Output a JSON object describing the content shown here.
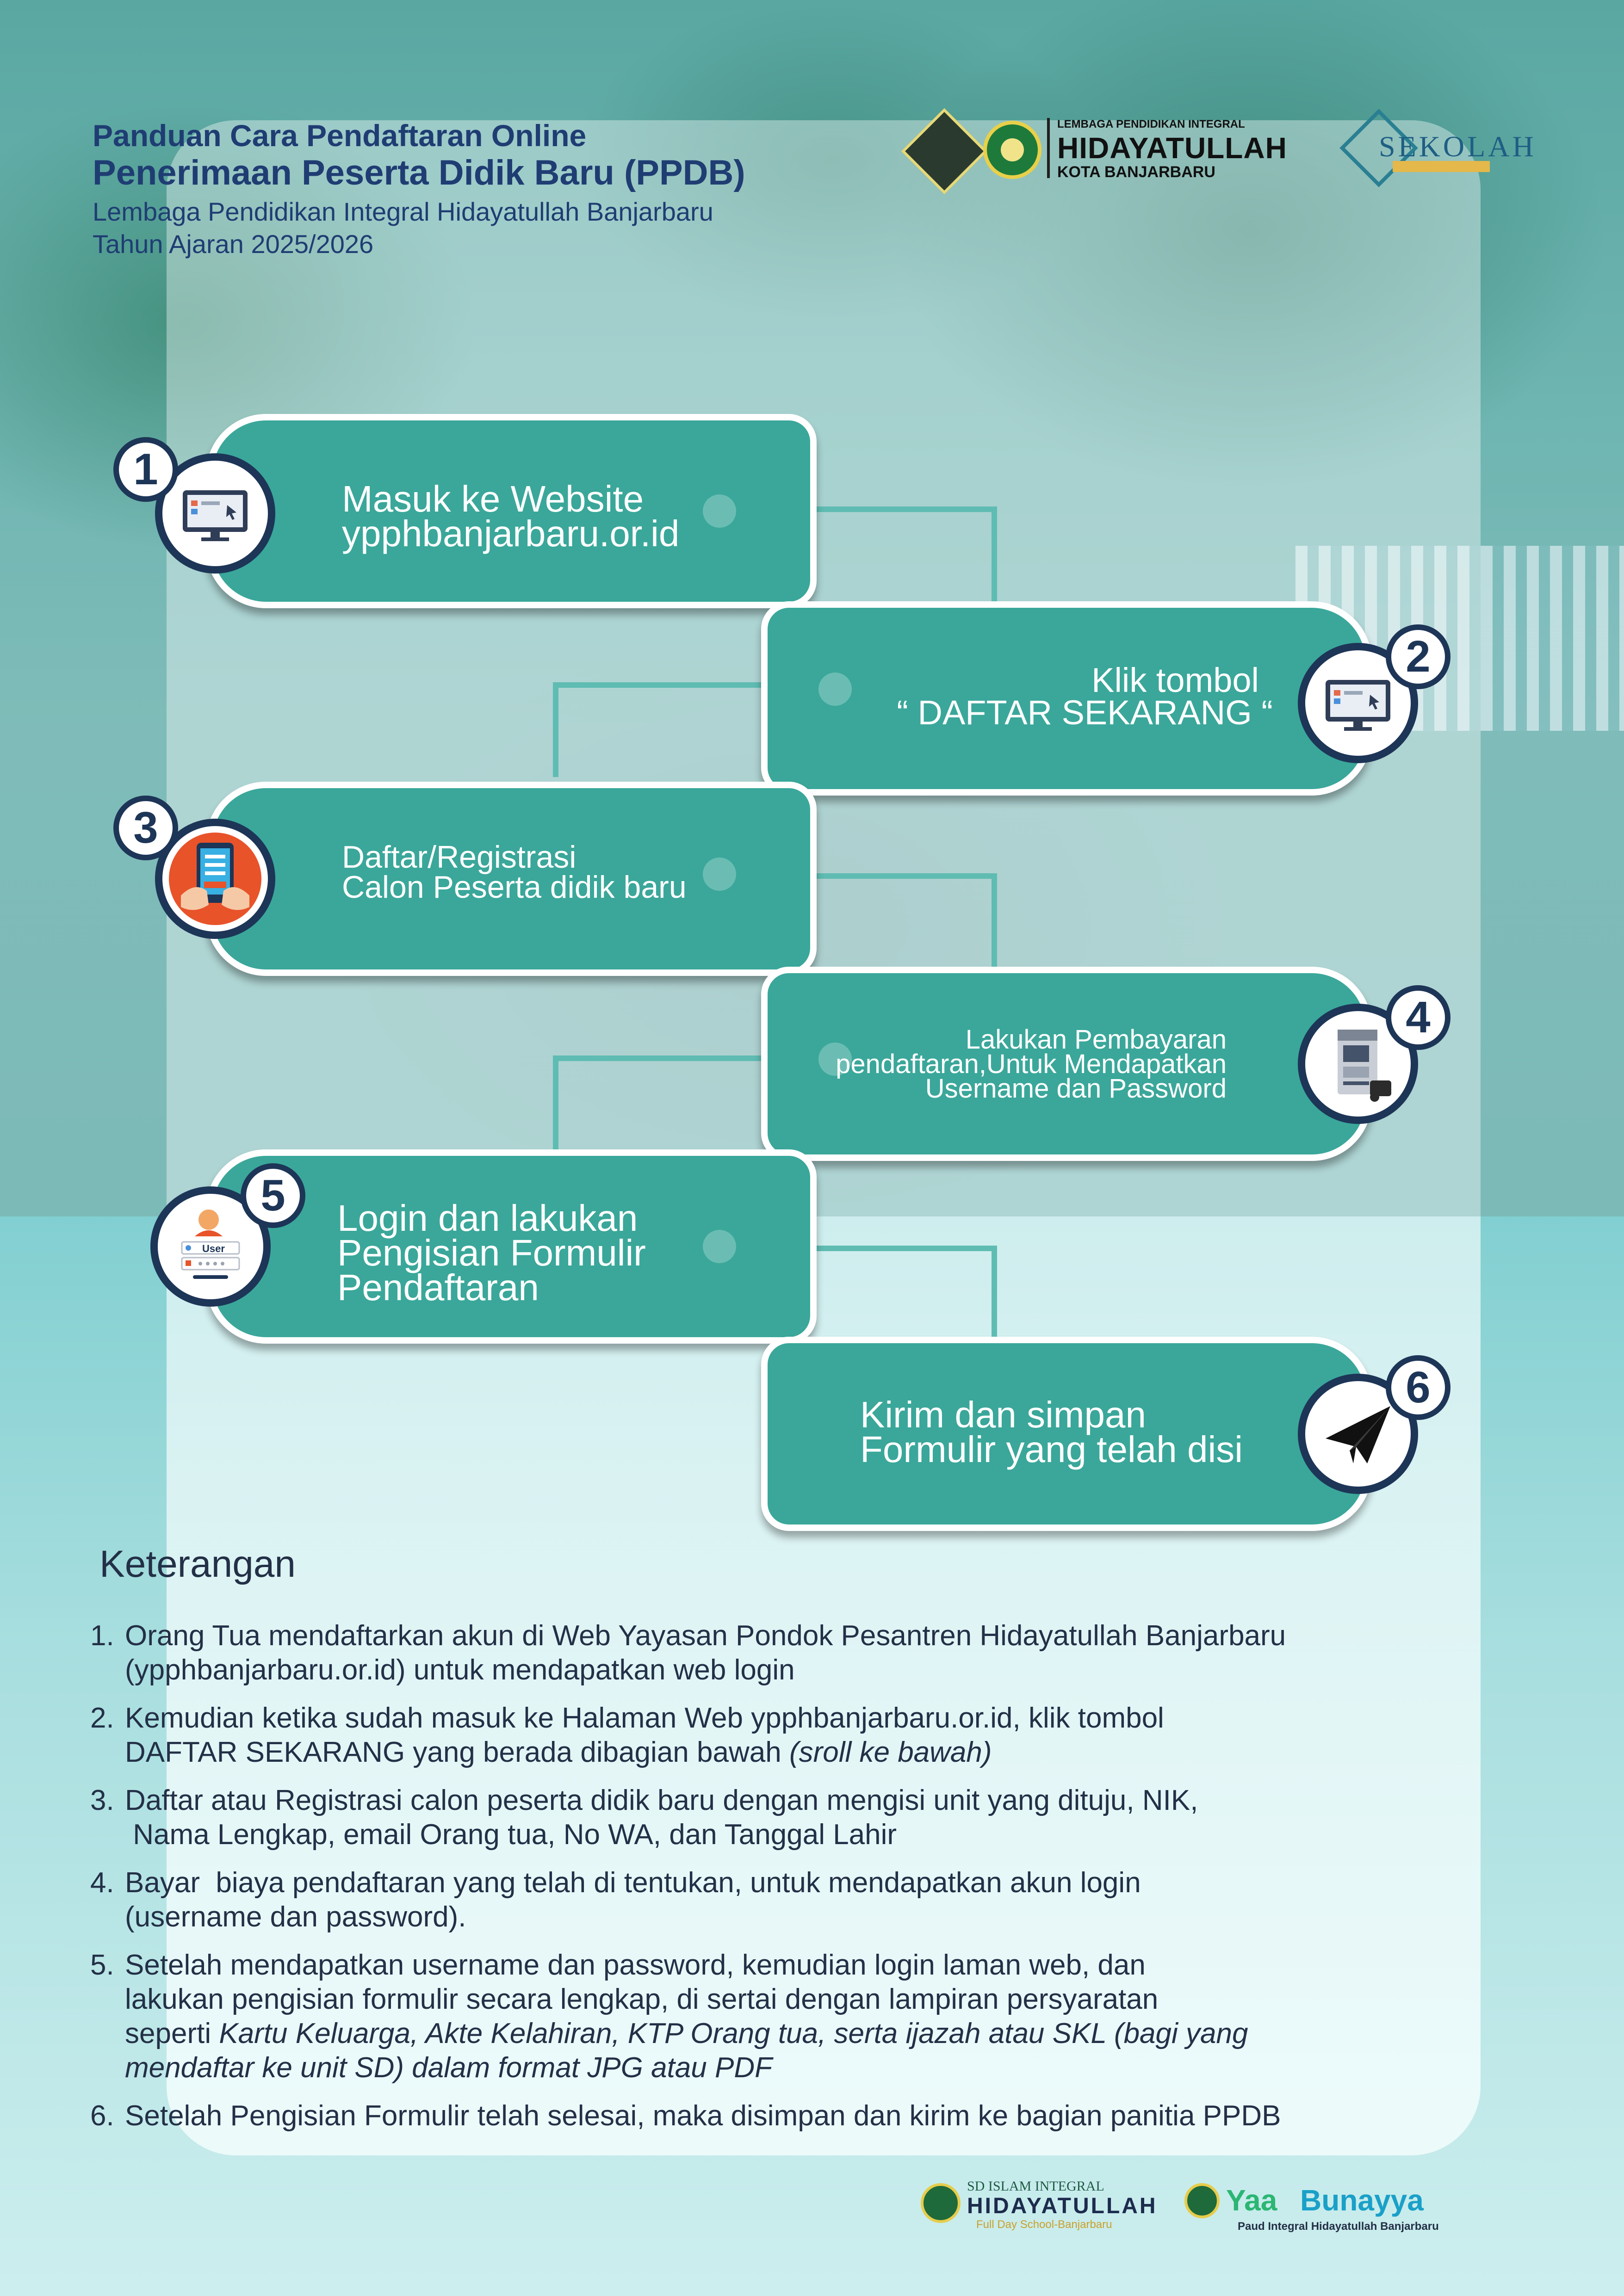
{
  "header": {
    "line1": "Panduan Cara Pendaftaran Online",
    "line2": "Penerimaan Peserta Didik Baru (PPDB)",
    "line3": "Lembaga Pendidikan Integral Hidayatullah Banjarbaru",
    "line4": "Tahun Ajaran 2025/2026"
  },
  "logo": {
    "small": "LEMBAGA PENDIDIKAN INTEGRAL",
    "big": "HIDAYATULLAH",
    "sub": "KOTA BANJARBARU"
  },
  "sekolah_logo": {
    "text": "SEKOLAH"
  },
  "steps": [
    {
      "num": "1",
      "line1": "Masuk ke Website",
      "line2": "ypphbanjarbaru.or.id",
      "icon": "computer-icon"
    },
    {
      "num": "2",
      "line1": "Klik tombol",
      "line2": "“ DAFTAR SEKARANG “",
      "icon": "computer-icon"
    },
    {
      "num": "3",
      "line1": "Daftar/Registrasi",
      "line2": "Calon Peserta didik baru",
      "icon": "tablet-register-icon"
    },
    {
      "num": "4",
      "line1": "Lakukan Pembayaran",
      "line2": "pendaftaran,Untuk Mendapatkan",
      "line3": "Username dan Password",
      "icon": "atm-icon"
    },
    {
      "num": "5",
      "line1": "Login dan lakukan",
      "line2": "Pengisian Formulir",
      "line3": "Pendaftaran",
      "icon": "user-login-icon",
      "icon_label": "User"
    },
    {
      "num": "6",
      "line1": "Kirim dan simpan",
      "line2": "Formulir yang telah disi",
      "icon": "paper-plane-icon"
    }
  ],
  "keterangan": {
    "title": "Keterangan",
    "items": [
      {
        "num": "1.",
        "l1": "Orang Tua mendaftarkan akun di Web Yayasan Pondok Pesantren Hidayatullah Banjarbaru",
        "l2": "(ypphbanjarbaru.or.id) untuk mendapatkan web login"
      },
      {
        "num": "2.",
        "l1": "Kemudian ketika sudah masuk ke Halaman Web ypphbanjarbaru.or.id, klik tombol",
        "l2": "DAFTAR SEKARANG yang berada dibagian bawah ",
        "l2_em": "(sroll ke bawah)"
      },
      {
        "num": "3.",
        "l1": "Daftar atau Registrasi calon peserta didik baru dengan mengisi unit yang dituju, NIK,",
        "l2": " Nama Lengkap, email Orang tua, No WA, dan Tanggal Lahir"
      },
      {
        "num": "4.",
        "l1": "Bayar  biaya pendaftaran yang telah di tentukan, untuk mendapatkan akun login",
        "l2": "(username dan password)."
      },
      {
        "num": "5.",
        "l1": "Setelah mendapatkan username dan password, kemudian login laman web, dan",
        "l2": "lakukan pengisian formulir secara lengkap, di sertai dengan lampiran persyaratan",
        "l3": "seperti ",
        "l3_em": "Kartu Keluarga, Akte Kelahiran, KTP Orang tua, serta ijazah atau SKL (bagi yang",
        "l4_em": "mendaftar ke unit SD) dalam format JPG atau PDF"
      },
      {
        "num": "6.",
        "l1": "Setelah Pengisian Formulir telah selesai, maka disimpan dan kirim ke bagian panitia PPDB"
      }
    ]
  },
  "footer": {
    "logo1_top": "SD ISLAM INTEGRAL",
    "logo1_big": "HIDAYATULLAH",
    "logo1_sub": "Full Day School-Banjarbaru",
    "logo2_yaa": "Yaa",
    "logo2_bunayya": "Bunayya",
    "logo2_sub": "Paud Integral Hidayatullah Banjarbaru"
  },
  "colors": {
    "step_fill": "#3aa79a",
    "navy": "#1d3557",
    "connector": "#5fbcb3"
  }
}
